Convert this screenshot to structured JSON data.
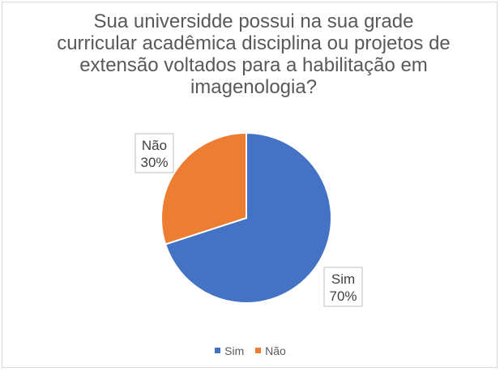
{
  "chart_data": {
    "type": "pie",
    "title_lines": [
      "Sua universidde possui na sua grade",
      "curricular acadêmica disciplina ou projetos de",
      "extensão voltados para a habilitação em",
      "imagenologia?"
    ],
    "categories": [
      "Sim",
      "Não"
    ],
    "values": [
      70,
      30
    ],
    "value_labels": [
      "70%",
      "30%"
    ],
    "colors": [
      "#4472c4",
      "#ed7d31"
    ],
    "legend": {
      "position": "bottom",
      "entries": [
        "Sim",
        "Não"
      ]
    }
  }
}
